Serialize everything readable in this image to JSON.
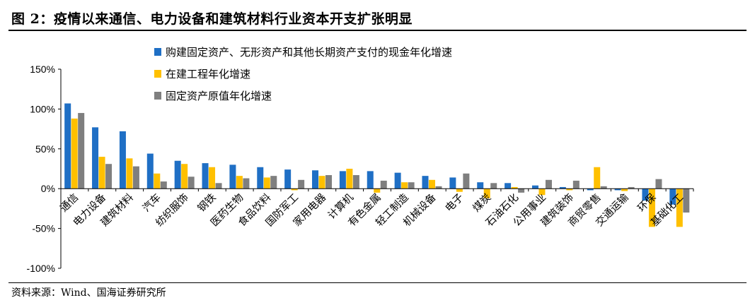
{
  "header": {
    "title": "图 2：疫情以来通信、电力设备和建筑材料行业资本开支扩张明显"
  },
  "footer": {
    "source": "资料来源：Wind、国海证券研究所"
  },
  "chart_data": {
    "type": "bar",
    "ylim": [
      -100,
      150
    ],
    "yticks": [
      -100,
      -50,
      0,
      50,
      100,
      150
    ],
    "ytick_labels": [
      "-100%",
      "-50%",
      "0%",
      "50%",
      "100%",
      "150%"
    ],
    "grid": false,
    "legend_position": "top",
    "categories": [
      "通信",
      "电力设备",
      "建筑材料",
      "汽车",
      "纺织服饰",
      "钢铁",
      "医药生物",
      "食品饮料",
      "国防军工",
      "家用电器",
      "计算机",
      "有色金属",
      "轻工制造",
      "机械设备",
      "电子",
      "煤炭",
      "石油石化",
      "公用事业",
      "建筑装饰",
      "商贸零售",
      "交通运输",
      "环保",
      "基础化工"
    ],
    "series": [
      {
        "name": "购建固定资产、无形资产和其他长期资产支付的现金年化增速",
        "color": "#1f6fc5",
        "values": [
          107,
          77,
          72,
          44,
          35,
          32,
          30,
          27,
          24,
          23,
          22,
          22,
          20,
          16,
          14,
          8,
          7,
          4,
          2,
          -2,
          -2,
          -15,
          -20
        ]
      },
      {
        "name": "在建工程年化增速",
        "color": "#ffc000",
        "values": [
          88,
          40,
          38,
          19,
          31,
          27,
          16,
          14,
          -2,
          16,
          25,
          -5,
          8,
          11,
          -4,
          -12,
          2,
          -8,
          -2,
          27,
          -3,
          -48,
          -48
        ]
      },
      {
        "name": "固定资产原值年化增速",
        "color": "#7f7f7f",
        "values": [
          95,
          31,
          28,
          9,
          15,
          7,
          13,
          16,
          11,
          17,
          17,
          10,
          8,
          3,
          19,
          7,
          -5,
          11,
          10,
          3,
          2,
          12,
          -30
        ]
      }
    ]
  }
}
